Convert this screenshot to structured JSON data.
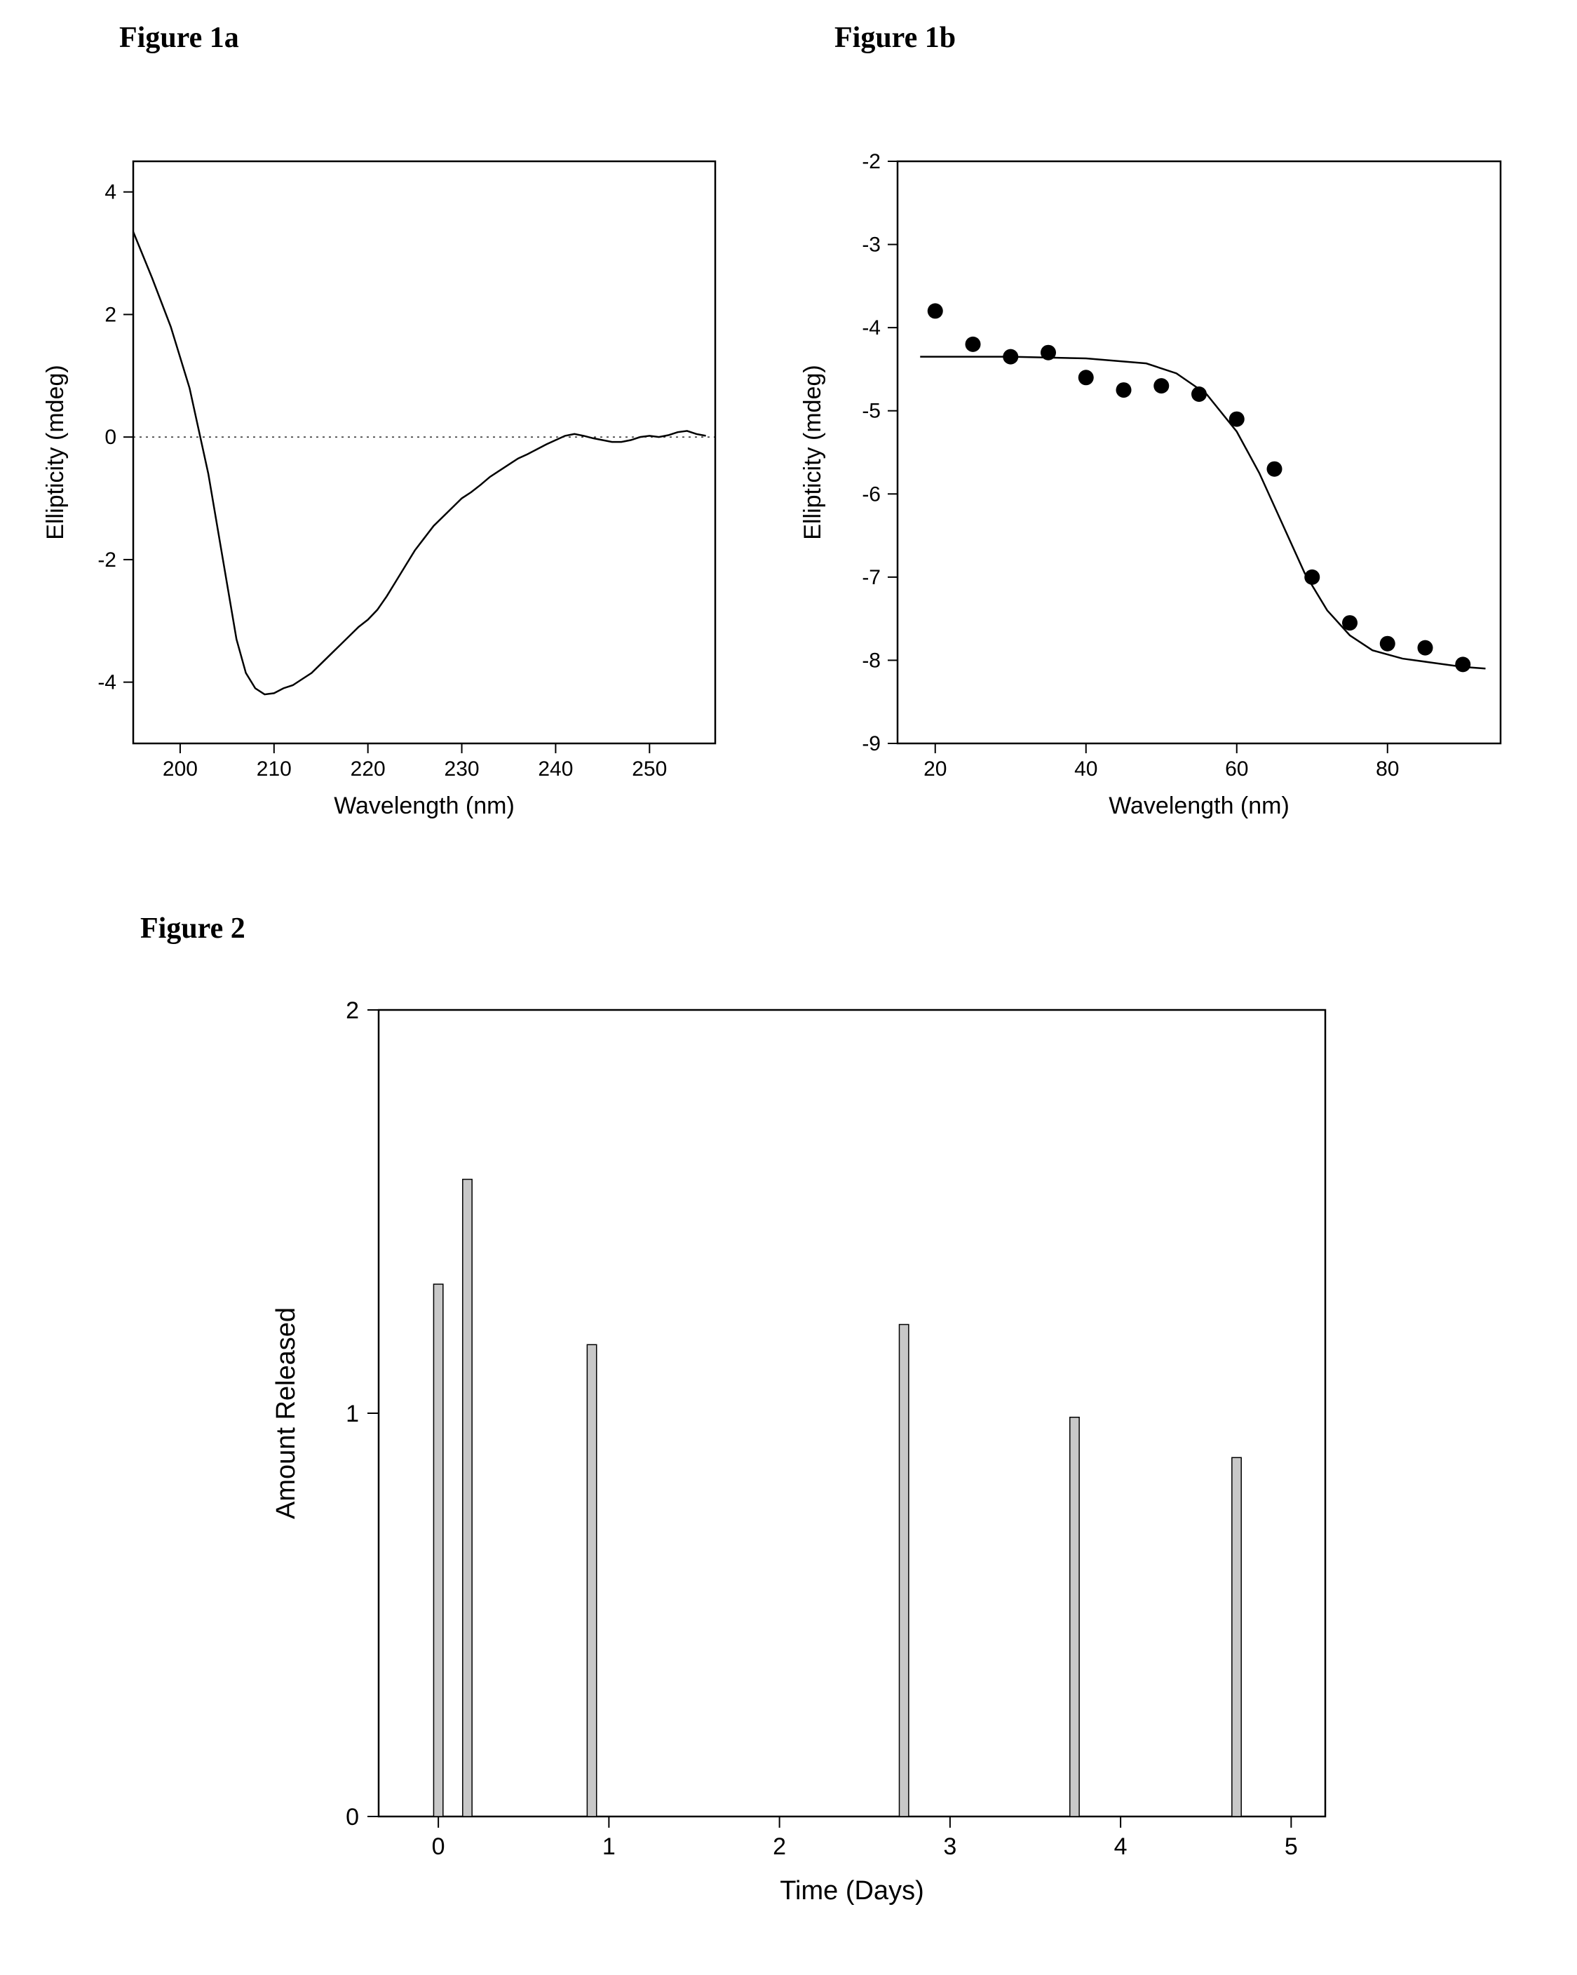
{
  "titles": {
    "fig1a": "Figure 1a",
    "fig1b": "Figure 1b",
    "fig2": "Figure 2"
  },
  "fig1a": {
    "type": "line",
    "xlabel": "Wavelength (nm)",
    "ylabel": "Ellipticity (mdeg)",
    "xlim": [
      195,
      257
    ],
    "ylim": [
      -5,
      4.5
    ],
    "xticks": [
      200,
      210,
      220,
      230,
      240,
      250
    ],
    "yticks": [
      -4,
      -2,
      0,
      2,
      4
    ],
    "title_fontsize": 42,
    "tick_fontsize": 30,
    "axis_label_fontsize": 34,
    "background_color": "#ffffff",
    "line_color": "#000000",
    "line_width": 2.5,
    "zero_line_color": "#000000",
    "zero_line_dash": "3 6",
    "series": [
      [
        195,
        3.35
      ],
      [
        197,
        2.6
      ],
      [
        199,
        1.8
      ],
      [
        201,
        0.8
      ],
      [
        203,
        -0.6
      ],
      [
        205,
        -2.4
      ],
      [
        206,
        -3.3
      ],
      [
        207,
        -3.85
      ],
      [
        208,
        -4.1
      ],
      [
        209,
        -4.2
      ],
      [
        210,
        -4.18
      ],
      [
        211,
        -4.1
      ],
      [
        212,
        -4.05
      ],
      [
        213,
        -3.95
      ],
      [
        214,
        -3.85
      ],
      [
        215,
        -3.7
      ],
      [
        216,
        -3.55
      ],
      [
        217,
        -3.4
      ],
      [
        218,
        -3.25
      ],
      [
        219,
        -3.1
      ],
      [
        220,
        -2.98
      ],
      [
        221,
        -2.82
      ],
      [
        222,
        -2.6
      ],
      [
        223,
        -2.35
      ],
      [
        224,
        -2.1
      ],
      [
        225,
        -1.85
      ],
      [
        226,
        -1.65
      ],
      [
        227,
        -1.45
      ],
      [
        228,
        -1.3
      ],
      [
        229,
        -1.15
      ],
      [
        230,
        -1.0
      ],
      [
        231,
        -0.9
      ],
      [
        232,
        -0.78
      ],
      [
        233,
        -0.65
      ],
      [
        234,
        -0.55
      ],
      [
        235,
        -0.45
      ],
      [
        236,
        -0.35
      ],
      [
        237,
        -0.28
      ],
      [
        238,
        -0.2
      ],
      [
        239,
        -0.12
      ],
      [
        240,
        -0.05
      ],
      [
        241,
        0.02
      ],
      [
        242,
        0.05
      ],
      [
        243,
        0.02
      ],
      [
        244,
        -0.02
      ],
      [
        245,
        -0.05
      ],
      [
        246,
        -0.08
      ],
      [
        247,
        -0.08
      ],
      [
        248,
        -0.05
      ],
      [
        249,
        0.0
      ],
      [
        250,
        0.02
      ],
      [
        251,
        0.0
      ],
      [
        252,
        0.03
      ],
      [
        253,
        0.08
      ],
      [
        254,
        0.1
      ],
      [
        255,
        0.05
      ],
      [
        256,
        0.02
      ]
    ]
  },
  "fig1b": {
    "type": "scatter-line",
    "xlabel": "Wavelength (nm)",
    "ylabel": "Ellipticity (mdeg)",
    "xlim": [
      15,
      95
    ],
    "ylim": [
      -9,
      -2
    ],
    "xticks": [
      20,
      40,
      60,
      80
    ],
    "yticks": [
      -9,
      -8,
      -7,
      -6,
      -5,
      -4,
      -3,
      -2
    ],
    "tick_fontsize": 30,
    "axis_label_fontsize": 34,
    "background_color": "#ffffff",
    "line_color": "#000000",
    "line_width": 2.5,
    "marker_color": "#000000",
    "marker_radius": 11,
    "points": [
      [
        20,
        -3.8
      ],
      [
        25,
        -4.2
      ],
      [
        30,
        -4.35
      ],
      [
        35,
        -4.3
      ],
      [
        40,
        -4.6
      ],
      [
        45,
        -4.75
      ],
      [
        50,
        -4.7
      ],
      [
        55,
        -4.8
      ],
      [
        60,
        -5.1
      ],
      [
        65,
        -5.7
      ],
      [
        70,
        -7.0
      ],
      [
        75,
        -7.55
      ],
      [
        80,
        -7.8
      ],
      [
        85,
        -7.85
      ],
      [
        90,
        -8.05
      ]
    ],
    "fit_curve": [
      [
        18,
        -4.35
      ],
      [
        30,
        -4.35
      ],
      [
        40,
        -4.37
      ],
      [
        48,
        -4.43
      ],
      [
        52,
        -4.55
      ],
      [
        56,
        -4.8
      ],
      [
        60,
        -5.25
      ],
      [
        63,
        -5.75
      ],
      [
        66,
        -6.35
      ],
      [
        69,
        -6.95
      ],
      [
        72,
        -7.4
      ],
      [
        75,
        -7.7
      ],
      [
        78,
        -7.88
      ],
      [
        82,
        -7.98
      ],
      [
        86,
        -8.03
      ],
      [
        90,
        -8.08
      ],
      [
        93,
        -8.1
      ]
    ]
  },
  "fig2": {
    "type": "bar",
    "xlabel": "Time (Days)",
    "ylabel": "Amount Released",
    "xlim": [
      -0.35,
      5.2
    ],
    "ylim": [
      0,
      2
    ],
    "xticks": [
      0,
      1,
      2,
      3,
      4,
      5
    ],
    "yticks": [
      0,
      1,
      2
    ],
    "tick_fontsize": 34,
    "axis_label_fontsize": 38,
    "background_color": "#ffffff",
    "bar_fill": "#c8c8c8",
    "bar_stroke": "#000000",
    "bar_width": 0.055,
    "bars": [
      {
        "x": 0.0,
        "y": 1.32
      },
      {
        "x": 0.17,
        "y": 1.58
      },
      {
        "x": 0.9,
        "y": 1.17
      },
      {
        "x": 2.73,
        "y": 1.22
      },
      {
        "x": 3.73,
        "y": 0.99
      },
      {
        "x": 4.68,
        "y": 0.89
      }
    ]
  }
}
